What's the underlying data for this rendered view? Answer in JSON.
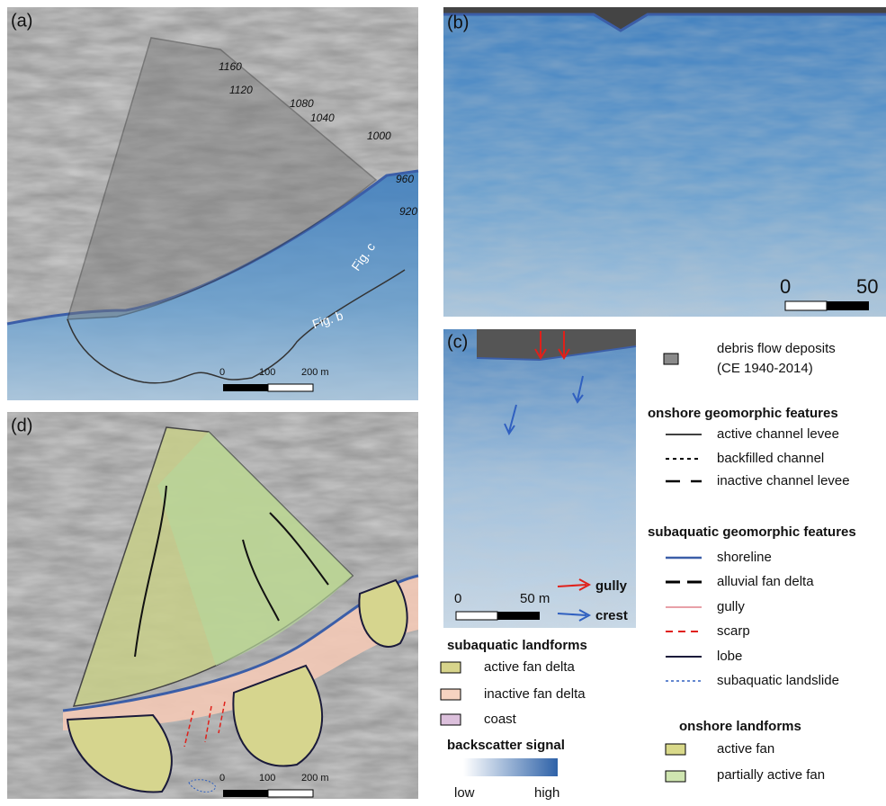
{
  "panels": {
    "a": {
      "label": "(a)",
      "contours": [
        "1160",
        "1120",
        "1080",
        "1040",
        "1000",
        "960",
        "920"
      ],
      "fig_b": "Fig. b",
      "fig_c": "Fig. c",
      "scale": [
        "0",
        "100",
        "200 m"
      ]
    },
    "b": {
      "label": "(b)",
      "scale": [
        "0",
        "50"
      ]
    },
    "c": {
      "label": "(c)",
      "gully": "gully",
      "crest": "crest",
      "scale": [
        "0",
        "50 m"
      ]
    },
    "d": {
      "label": "(d)",
      "scale": [
        "0",
        "100",
        "200 m"
      ]
    }
  },
  "legend": {
    "debris": [
      "debris flow deposits",
      "(CE 1940-2014)"
    ],
    "onshore_features": {
      "title": "onshore  geomorphic features",
      "items": [
        "active channel levee",
        "backfilled channel",
        "inactive channel levee"
      ]
    },
    "subaquatic_features": {
      "title": "subaquatic geomorphic features",
      "items": [
        "shoreline",
        "alluvial fan delta",
        "gully",
        "scarp",
        "lobe",
        "subaquatic landslide"
      ]
    },
    "onshore_landforms": {
      "title": "onshore landforms",
      "items": [
        "active fan",
        "partially active fan"
      ]
    },
    "subaquatic_landforms": {
      "title": "subaquatic landforms",
      "items": [
        "active fan delta",
        "inactive fan delta",
        "coast"
      ]
    },
    "backscatter": {
      "title": "backscatter signal",
      "low": "low",
      "high": "high"
    }
  }
}
